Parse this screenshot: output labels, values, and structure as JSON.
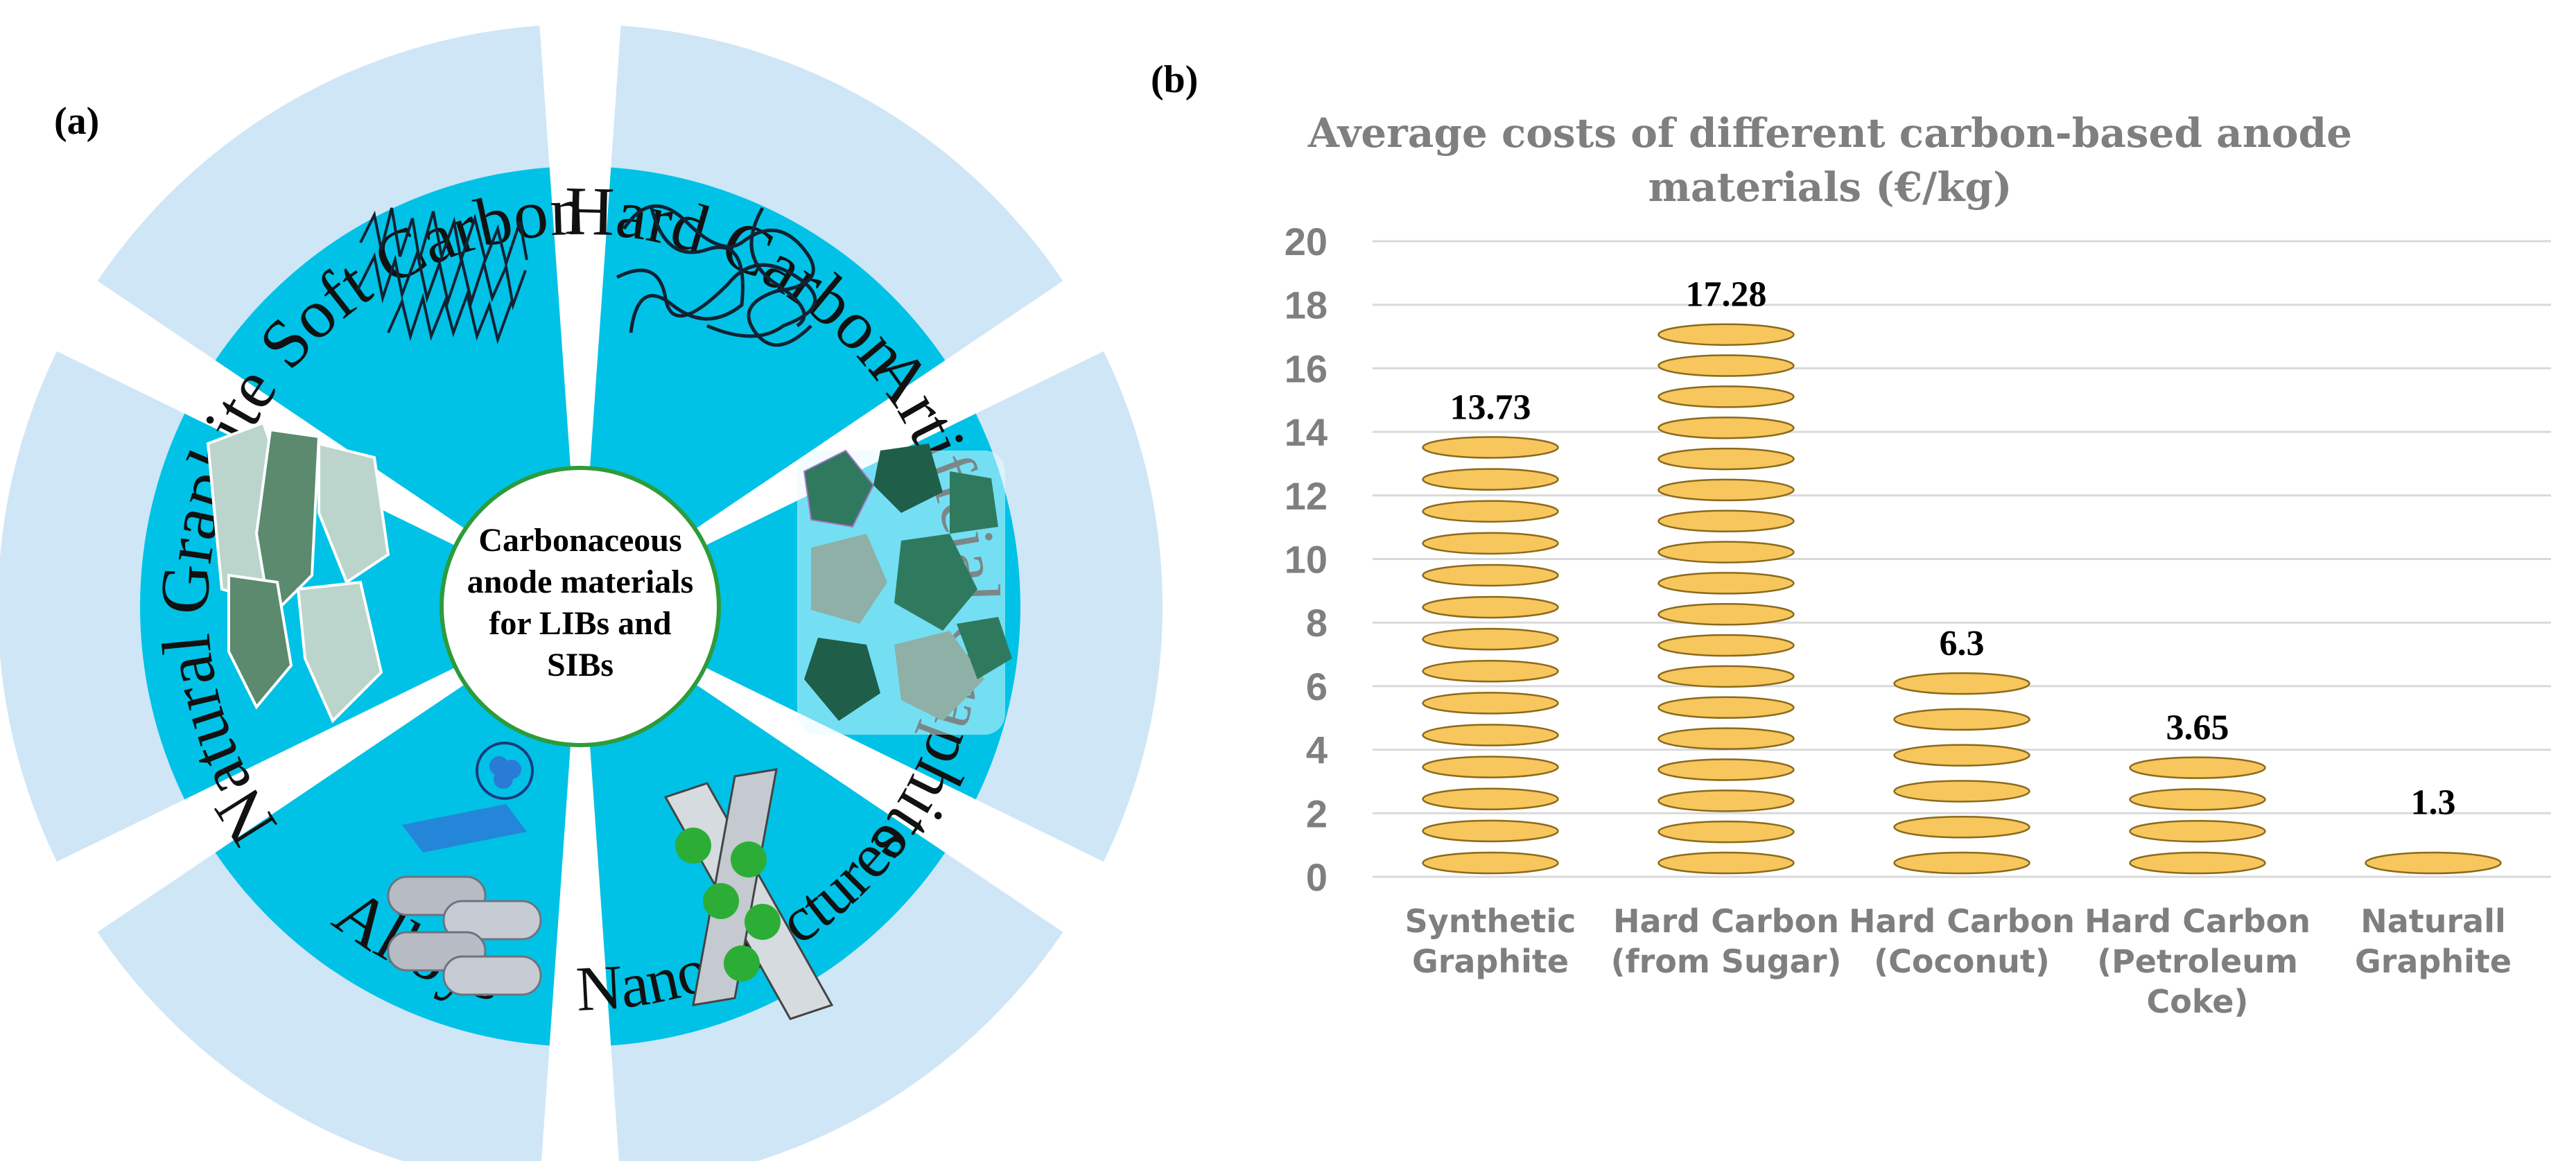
{
  "panel_a": {
    "label": "(a)",
    "center_text": [
      "Carbonaceous",
      "anode materials",
      "for LIBs and",
      "SIBs"
    ],
    "segments": [
      "Soft Carbon",
      "Hard Carbon",
      "Artificial Graphite",
      "Nanostructures",
      "Alloys",
      "Natural Graphite"
    ],
    "colors": {
      "ring": "#cfe6f7",
      "sector": "#00c2e6",
      "center_border": "#2e9b3a",
      "center_fill": "#ffffff"
    }
  },
  "panel_b": {
    "label": "(b)"
  },
  "chart_data": {
    "type": "bar",
    "title": "Average costs of different carbon-based anode materials  (€/kg)",
    "title_lines": [
      "Average costs of different carbon-based anode",
      "materials  (€/kg)"
    ],
    "categories": [
      "Synthetic Graphite",
      "Hard Carbon (from Sugar)",
      "Hard Carbon (Coconut)",
      "Hard Carbon (Petroleum Coke)",
      "Naturall Graphite"
    ],
    "category_lines": [
      [
        "Synthetic",
        "Graphite"
      ],
      [
        "Hard Carbon",
        "(from Sugar)"
      ],
      [
        "Hard Carbon",
        "(Coconut)"
      ],
      [
        "Hard Carbon",
        "(Petroleum",
        "Coke)"
      ],
      [
        "Naturall",
        "Graphite"
      ]
    ],
    "values": [
      13.73,
      17.28,
      6.3,
      3.65,
      1.3
    ],
    "data_labels": [
      "13.73",
      "17.28",
      "6.3",
      "3.65",
      "1.3"
    ],
    "xlabel": "",
    "ylabel": "",
    "ylim": [
      0,
      20
    ],
    "yticks": [
      "0",
      "2",
      "4",
      "6",
      "8",
      "10",
      "12",
      "14",
      "16",
      "18",
      "20"
    ],
    "grid": true,
    "colors": {
      "coin": "#f7c65c",
      "coin_edge": "#8a6a1c",
      "grid": "#d9d9d9",
      "title": "#7f7f7f",
      "ticks": "#7f7f7f"
    }
  }
}
